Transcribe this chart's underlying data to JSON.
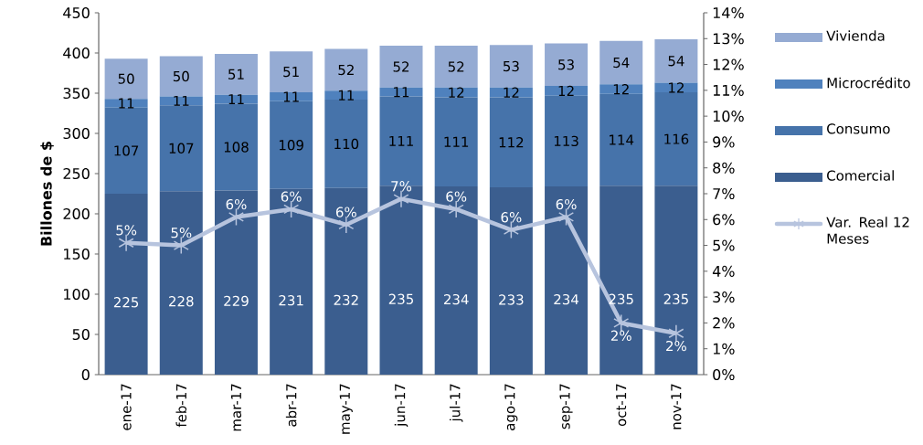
{
  "chart_data": {
    "type": "bar",
    "stacked": true,
    "ylabel": "Billones de $",
    "categories": [
      "ene-17",
      "feb-17",
      "mar-17",
      "abr-17",
      "may-17",
      "jun-17",
      "jul-17",
      "ago-17",
      "sep-17",
      "oct-17",
      "nov-17"
    ],
    "series": [
      {
        "name": "Comercial",
        "color": "#3b5e8f",
        "values": [
          225,
          228,
          229,
          231,
          232,
          235,
          234,
          233,
          234,
          235,
          235
        ]
      },
      {
        "name": "Consumo",
        "color": "#4673aa",
        "values": [
          107,
          107,
          108,
          109,
          110,
          111,
          111,
          112,
          113,
          114,
          116
        ]
      },
      {
        "name": "Microcrédito",
        "color": "#4f81bd",
        "values": [
          11,
          11,
          11,
          11,
          11,
          11,
          12,
          12,
          12,
          12,
          12
        ]
      },
      {
        "name": "Vivienda",
        "color": "#95abd3",
        "values": [
          50,
          50,
          51,
          51,
          52,
          52,
          52,
          53,
          53,
          54,
          54
        ]
      },
      {
        "name": "Var. Real 12 Meses",
        "type": "line",
        "axis": "y2",
        "color": "#b7c4de",
        "marker": "cross",
        "values": [
          5.1,
          5.0,
          6.1,
          6.4,
          5.8,
          6.8,
          6.4,
          5.6,
          6.1,
          2.0,
          1.6
        ],
        "value_labels": [
          "5%",
          "5%",
          "6%",
          "6%",
          "6%",
          "7%",
          "6%",
          "6%",
          "6%",
          "2%",
          "2%"
        ]
      }
    ],
    "data_labels": true,
    "legend": "right",
    "grid": false,
    "ylim": [
      0,
      450
    ],
    "yticks": [
      0,
      50,
      100,
      150,
      200,
      250,
      300,
      350,
      400,
      450
    ],
    "y2lim": [
      0,
      14
    ],
    "y2ticks": [
      {
        "value": 0,
        "label": "0%"
      },
      {
        "value": 1,
        "label": "1%"
      },
      {
        "value": 2,
        "label": "2%"
      },
      {
        "value": 3,
        "label": "3%"
      },
      {
        "value": 4,
        "label": "4%"
      },
      {
        "value": 5,
        "label": "5%"
      },
      {
        "value": 6,
        "label": "6%"
      },
      {
        "value": 7,
        "label": "7%"
      },
      {
        "value": 8,
        "label": "8%"
      },
      {
        "value": 9,
        "label": "9%"
      },
      {
        "value": 10,
        "label": "10%"
      },
      {
        "value": 11,
        "label": "11%"
      },
      {
        "value": 12,
        "label": "12%"
      },
      {
        "value": 13,
        "label": "13%"
      },
      {
        "value": 14,
        "label": "14%"
      }
    ]
  }
}
